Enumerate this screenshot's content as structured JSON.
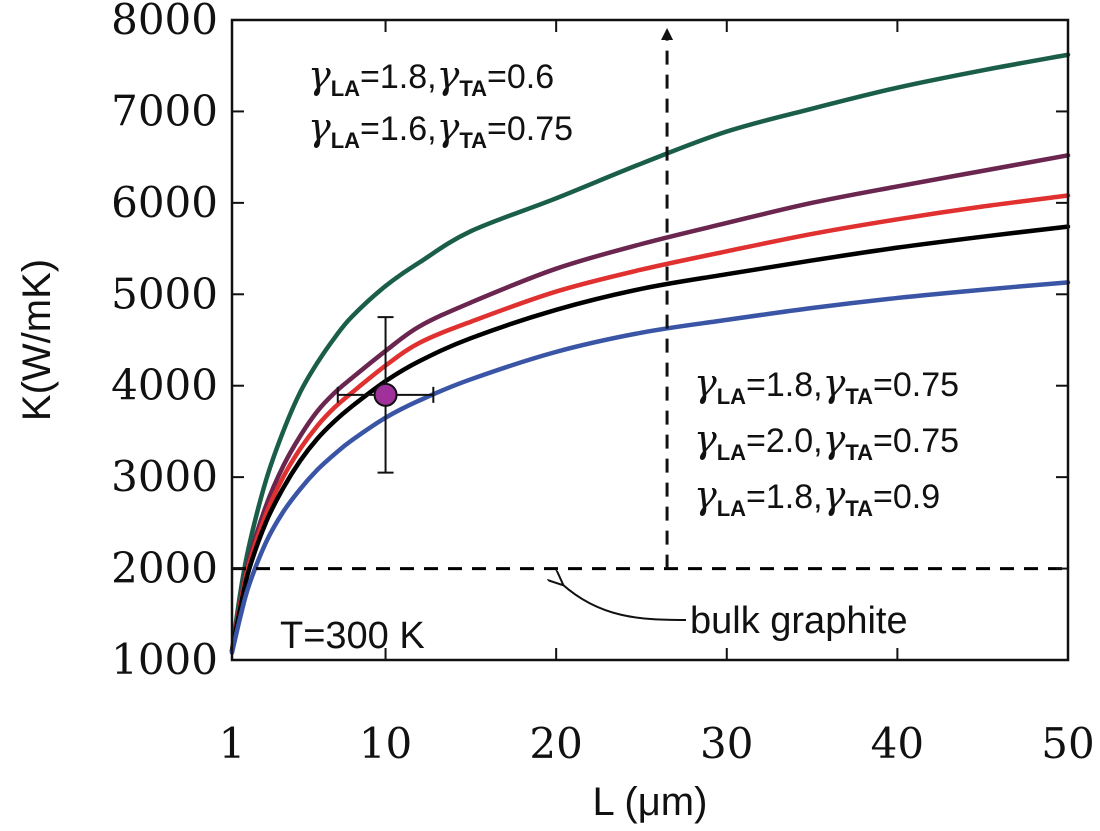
{
  "chart_data": {
    "type": "line",
    "xlabel": "L (μm)",
    "ylabel": "K(W/mK)",
    "xlim": [
      1,
      50
    ],
    "ylim": [
      1000,
      8000
    ],
    "x_ticks": [
      1,
      10,
      20,
      30,
      40,
      50
    ],
    "x_tick_labels": [
      "1",
      "10",
      "20",
      "30",
      "40",
      "50"
    ],
    "y_ticks": [
      1000,
      2000,
      3000,
      4000,
      5000,
      6000,
      7000,
      8000
    ],
    "y_tick_labels": [
      "1000",
      "2000",
      "3000",
      "4000",
      "5000",
      "6000",
      "7000",
      "8000"
    ],
    "grid": false,
    "x": [
      1,
      1.5,
      2,
      3,
      4,
      5,
      6,
      7,
      8,
      10,
      12,
      15,
      20,
      25,
      30,
      35,
      40,
      45,
      50
    ],
    "series": [
      {
        "color": "#1a5e4a",
        "values": [
          1100,
          1750,
          2250,
          2970,
          3500,
          3930,
          4250,
          4520,
          4750,
          5090,
          5350,
          5690,
          6050,
          6430,
          6780,
          7030,
          7260,
          7450,
          7620
        ]
      },
      {
        "color": "#6b2650",
        "values": [
          1100,
          1650,
          2100,
          2690,
          3120,
          3450,
          3720,
          3920,
          4080,
          4380,
          4650,
          4910,
          5280,
          5550,
          5780,
          6000,
          6180,
          6350,
          6520
        ]
      },
      {
        "color": "#e03030",
        "values": [
          1100,
          1620,
          2050,
          2600,
          3000,
          3310,
          3560,
          3760,
          3920,
          4220,
          4470,
          4700,
          5030,
          5270,
          5470,
          5660,
          5820,
          5960,
          6080
        ]
      },
      {
        "color": "#000000",
        "values": [
          1100,
          1580,
          1990,
          2510,
          2880,
          3180,
          3420,
          3610,
          3770,
          4050,
          4270,
          4520,
          4830,
          5060,
          5220,
          5370,
          5510,
          5630,
          5740
        ]
      },
      {
        "color": "#3a55a5",
        "values": [
          1080,
          1480,
          1820,
          2290,
          2620,
          2870,
          3080,
          3250,
          3400,
          3650,
          3840,
          4070,
          4370,
          4580,
          4720,
          4850,
          4960,
          5050,
          5130
        ]
      }
    ],
    "reference_line": {
      "y": 2000,
      "style": "dashed",
      "color": "#000000"
    },
    "arrow": {
      "x": 26.5,
      "y_from": 2000,
      "y_to": 8000,
      "style": "dashed"
    },
    "data_point": {
      "x": 10,
      "y": 3900,
      "x_err": [
        7.2,
        12.8
      ],
      "y_err": [
        3050,
        4750
      ],
      "color": "#a0309a"
    },
    "annotations": {
      "top_group": [
        {
          "g1": "γ",
          "s1": "LA",
          "v1": "=1.8,",
          "g2": "γ",
          "s2": "TA",
          "v2": "=0.6"
        },
        {
          "g1": "γ",
          "s1": "LA",
          "v1": "=1.6,",
          "g2": "γ",
          "s2": "TA",
          "v2": "=0.75"
        }
      ],
      "bottom_group": [
        {
          "g1": "γ",
          "s1": "LA",
          "v1": "=1.8,",
          "g2": "γ",
          "s2": "TA",
          "v2": "=0.75"
        },
        {
          "g1": "γ",
          "s1": "LA",
          "v1": "=2.0,",
          "g2": "γ",
          "s2": "TA",
          "v2": "=0.75"
        },
        {
          "g1": "γ",
          "s1": "LA",
          "v1": "=1.8,",
          "g2": "γ",
          "s2": "TA",
          "v2": "=0.9"
        }
      ],
      "temperature": "T=300 K",
      "bulk_label": "bulk graphite"
    }
  }
}
